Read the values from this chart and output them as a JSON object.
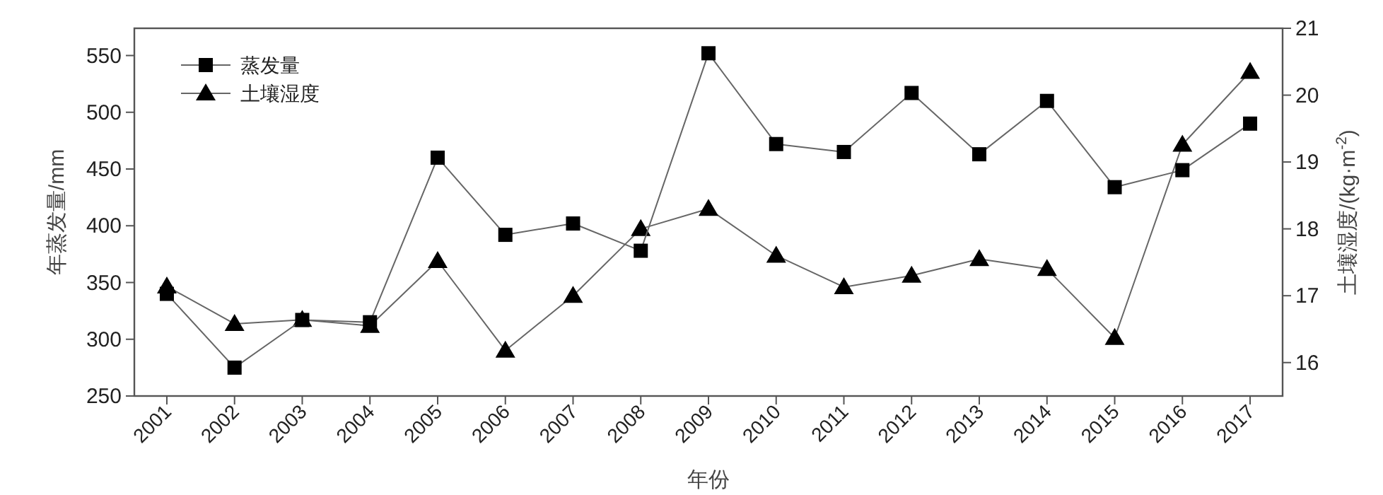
{
  "chart_data": {
    "type": "line",
    "xlabel": "年份",
    "ylabel": "年蒸发量/mm",
    "y2label": "土壤湿度/(kg·m$^{-2}$)",
    "categories": [
      "2001",
      "2002",
      "2003",
      "2004",
      "2005",
      "2006",
      "2007",
      "2008",
      "2009",
      "2010",
      "2011",
      "2012",
      "2013",
      "2014",
      "2015",
      "2016",
      "2017"
    ],
    "series": [
      {
        "name": "蒸发量",
        "color": "#000000",
        "marker": "square",
        "values": [
          340,
          275,
          317,
          315,
          460,
          392,
          402,
          378,
          552,
          472,
          465,
          517,
          463,
          510,
          434,
          449,
          490
        ]
      },
      {
        "name": "土壤湿度",
        "color": "#000000",
        "marker": "triangle",
        "axis": "y2",
        "values": [
          17.14,
          16.58,
          16.64,
          16.55,
          17.52,
          16.18,
          17.0,
          18.0,
          18.3,
          17.6,
          17.13,
          17.3,
          17.55,
          17.4,
          16.37,
          19.26,
          20.35
        ]
      }
    ],
    "ylim": [
      250,
      574
    ],
    "yticks": [
      250,
      300,
      350,
      400,
      450,
      500,
      550
    ],
    "y2lim": [
      15.5,
      21
    ],
    "y2ticks": [
      16,
      17,
      18,
      19,
      20,
      21
    ],
    "legend": "top left",
    "grid": false,
    "line_style": "solid"
  }
}
